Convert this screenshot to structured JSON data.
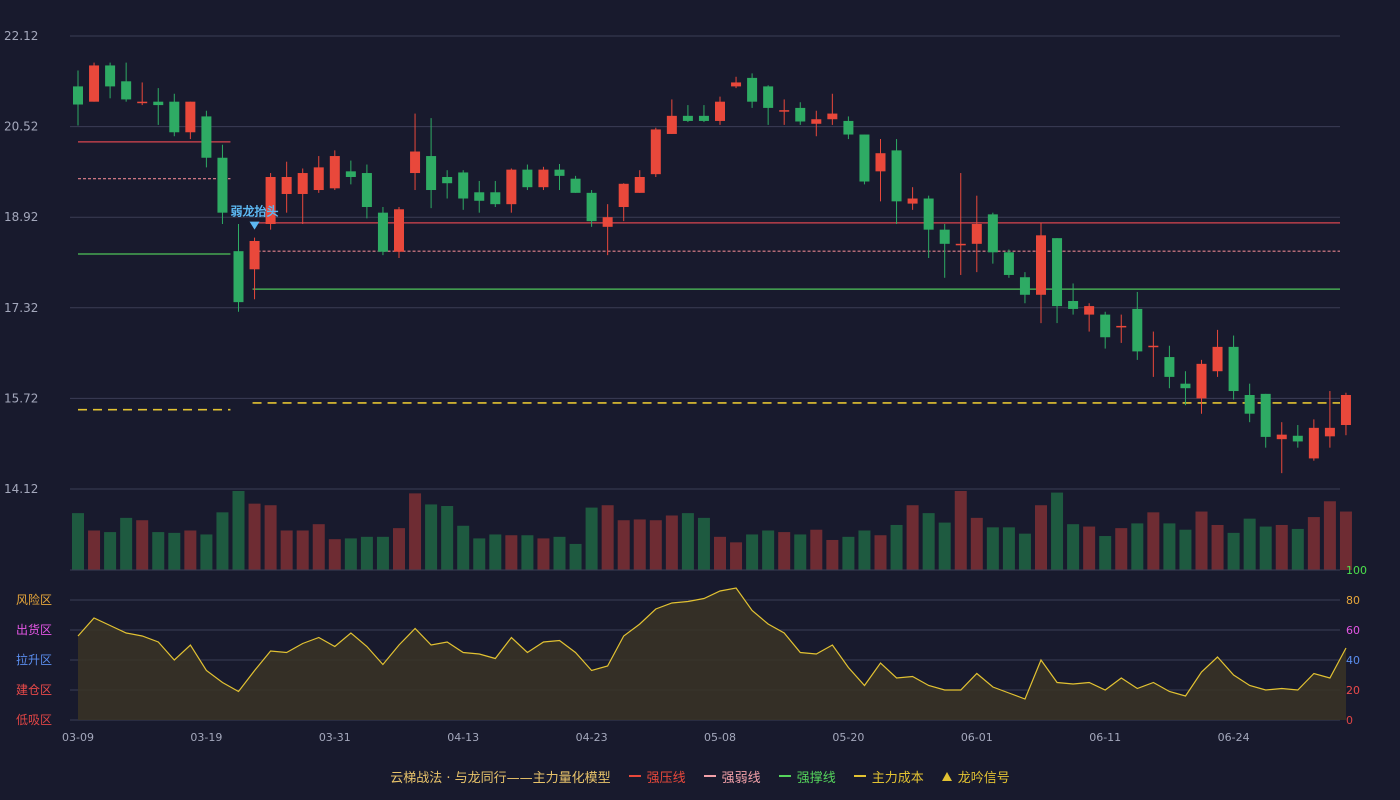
{
  "chart_data": {
    "type": "candlestick",
    "title": "",
    "colors": {
      "up": "#e9483b",
      "down": "#2eab64",
      "grid": "#3a3d55",
      "text": "#a4a8bc",
      "cost": "#e2c232",
      "indicator": "#e2c232"
    },
    "price_axis": {
      "min": 14.12,
      "max": 22.12,
      "ticks": [
        "22.12",
        "20.52",
        "18.92",
        "17.32",
        "15.72",
        "14.12"
      ]
    },
    "x_ticks": [
      {
        "i": 0,
        "label": "03-09"
      },
      {
        "i": 8,
        "label": "03-19"
      },
      {
        "i": 16,
        "label": "03-31"
      },
      {
        "i": 24,
        "label": "04-13"
      },
      {
        "i": 32,
        "label": "04-23"
      },
      {
        "i": 40,
        "label": "05-08"
      },
      {
        "i": 48,
        "label": "05-20"
      },
      {
        "i": 56,
        "label": "06-01"
      },
      {
        "i": 64,
        "label": "06-11"
      },
      {
        "i": 72,
        "label": "06-24"
      }
    ],
    "candles": [
      {
        "o": 21.23,
        "c": 20.91,
        "h": 21.51,
        "l": 20.54
      },
      {
        "o": 20.96,
        "c": 21.6,
        "h": 21.65,
        "l": 20.96
      },
      {
        "o": 21.6,
        "c": 21.23,
        "h": 21.65,
        "l": 21.02
      },
      {
        "o": 21.32,
        "c": 21.0,
        "h": 21.65,
        "l": 20.96
      },
      {
        "o": 20.96,
        "c": 20.96,
        "h": 21.3,
        "l": 20.9
      },
      {
        "o": 20.96,
        "c": 20.9,
        "h": 21.2,
        "l": 20.55
      },
      {
        "o": 20.96,
        "c": 20.42,
        "h": 21.1,
        "l": 20.35
      },
      {
        "o": 20.42,
        "c": 20.96,
        "h": 20.96,
        "l": 20.3
      },
      {
        "o": 20.7,
        "c": 19.97,
        "h": 20.8,
        "l": 19.8
      },
      {
        "o": 19.97,
        "c": 19.0,
        "h": 20.2,
        "l": 18.8
      },
      {
        "o": 18.32,
        "c": 17.42,
        "h": 18.8,
        "l": 17.25
      },
      {
        "o": 18.0,
        "c": 18.5,
        "h": 18.56,
        "l": 17.47
      },
      {
        "o": 18.8,
        "c": 19.63,
        "h": 19.7,
        "l": 18.7
      },
      {
        "o": 19.33,
        "c": 19.63,
        "h": 19.9,
        "l": 19.0
      },
      {
        "o": 19.33,
        "c": 19.7,
        "h": 19.78,
        "l": 18.8
      },
      {
        "o": 19.4,
        "c": 19.8,
        "h": 20.0,
        "l": 19.35
      },
      {
        "o": 19.43,
        "c": 20.0,
        "h": 20.1,
        "l": 19.4
      },
      {
        "o": 19.73,
        "c": 19.63,
        "h": 19.92,
        "l": 19.5
      },
      {
        "o": 19.7,
        "c": 19.1,
        "h": 19.85,
        "l": 18.9
      },
      {
        "o": 19.0,
        "c": 18.31,
        "h": 19.1,
        "l": 18.25
      },
      {
        "o": 18.31,
        "c": 19.06,
        "h": 19.1,
        "l": 18.2
      },
      {
        "o": 19.7,
        "c": 20.08,
        "h": 20.75,
        "l": 19.4
      },
      {
        "o": 20.0,
        "c": 19.4,
        "h": 20.67,
        "l": 19.08
      },
      {
        "o": 19.63,
        "c": 19.52,
        "h": 19.75,
        "l": 19.25
      },
      {
        "o": 19.71,
        "c": 19.25,
        "h": 19.75,
        "l": 19.05
      },
      {
        "o": 19.36,
        "c": 19.21,
        "h": 19.56,
        "l": 19.0
      },
      {
        "o": 19.36,
        "c": 19.15,
        "h": 19.56,
        "l": 19.1
      },
      {
        "o": 19.15,
        "c": 19.76,
        "h": 19.78,
        "l": 19.0
      },
      {
        "o": 19.76,
        "c": 19.45,
        "h": 19.85,
        "l": 19.4
      },
      {
        "o": 19.45,
        "c": 19.76,
        "h": 19.81,
        "l": 19.4
      },
      {
        "o": 19.76,
        "c": 19.65,
        "h": 19.86,
        "l": 19.4
      },
      {
        "o": 19.6,
        "c": 19.35,
        "h": 19.65,
        "l": 19.35
      },
      {
        "o": 19.35,
        "c": 18.85,
        "h": 19.4,
        "l": 18.75
      },
      {
        "o": 18.75,
        "c": 18.92,
        "h": 19.15,
        "l": 18.25
      },
      {
        "o": 19.1,
        "c": 19.51,
        "h": 19.52,
        "l": 18.85
      },
      {
        "o": 19.35,
        "c": 19.63,
        "h": 19.75,
        "l": 19.35
      },
      {
        "o": 19.68,
        "c": 20.47,
        "h": 20.5,
        "l": 19.63
      },
      {
        "o": 20.39,
        "c": 20.71,
        "h": 21.0,
        "l": 20.39
      },
      {
        "o": 20.71,
        "c": 20.62,
        "h": 20.9,
        "l": 20.6
      },
      {
        "o": 20.71,
        "c": 20.62,
        "h": 20.9,
        "l": 20.6
      },
      {
        "o": 20.62,
        "c": 20.96,
        "h": 21.05,
        "l": 20.55
      },
      {
        "o": 21.23,
        "c": 21.3,
        "h": 21.4,
        "l": 21.2
      },
      {
        "o": 21.38,
        "c": 20.96,
        "h": 21.46,
        "l": 20.85
      },
      {
        "o": 21.23,
        "c": 20.85,
        "h": 21.25,
        "l": 20.55
      },
      {
        "o": 20.81,
        "c": 20.81,
        "h": 21.0,
        "l": 20.55
      },
      {
        "o": 20.85,
        "c": 20.61,
        "h": 20.95,
        "l": 20.55
      },
      {
        "o": 20.57,
        "c": 20.65,
        "h": 20.8,
        "l": 20.35
      },
      {
        "o": 20.65,
        "c": 20.75,
        "h": 21.1,
        "l": 20.55
      },
      {
        "o": 20.62,
        "c": 20.38,
        "h": 20.7,
        "l": 20.3
      },
      {
        "o": 20.38,
        "c": 19.55,
        "h": 20.38,
        "l": 19.5
      },
      {
        "o": 19.73,
        "c": 20.05,
        "h": 20.3,
        "l": 19.2
      },
      {
        "o": 20.1,
        "c": 19.2,
        "h": 20.3,
        "l": 18.8
      },
      {
        "o": 19.16,
        "c": 19.25,
        "h": 19.45,
        "l": 19.05
      },
      {
        "o": 19.25,
        "c": 18.7,
        "h": 19.3,
        "l": 18.2
      },
      {
        "o": 18.7,
        "c": 18.45,
        "h": 18.8,
        "l": 17.85
      },
      {
        "o": 18.45,
        "c": 18.45,
        "h": 19.7,
        "l": 17.9
      },
      {
        "o": 18.45,
        "c": 18.8,
        "h": 19.3,
        "l": 17.95
      },
      {
        "o": 18.97,
        "c": 18.3,
        "h": 19.0,
        "l": 18.1
      },
      {
        "o": 18.3,
        "c": 17.9,
        "h": 18.35,
        "l": 17.85
      },
      {
        "o": 17.86,
        "c": 17.55,
        "h": 17.95,
        "l": 17.4
      },
      {
        "o": 17.55,
        "c": 18.6,
        "h": 18.82,
        "l": 17.05
      },
      {
        "o": 18.55,
        "c": 17.35,
        "h": 18.55,
        "l": 17.05
      },
      {
        "o": 17.44,
        "c": 17.3,
        "h": 17.75,
        "l": 17.2
      },
      {
        "o": 17.2,
        "c": 17.35,
        "h": 17.4,
        "l": 16.9
      },
      {
        "o": 17.2,
        "c": 16.8,
        "h": 17.25,
        "l": 16.6
      },
      {
        "o": 17.0,
        "c": 17.0,
        "h": 17.2,
        "l": 16.7
      },
      {
        "o": 17.3,
        "c": 16.55,
        "h": 17.6,
        "l": 16.4
      },
      {
        "o": 16.65,
        "c": 16.65,
        "h": 16.9,
        "l": 16.1
      },
      {
        "o": 16.45,
        "c": 16.1,
        "h": 16.65,
        "l": 15.9
      },
      {
        "o": 15.98,
        "c": 15.9,
        "h": 16.2,
        "l": 15.6
      },
      {
        "o": 15.72,
        "c": 16.33,
        "h": 16.4,
        "l": 15.45
      },
      {
        "o": 16.2,
        "c": 16.63,
        "h": 16.93,
        "l": 16.1
      },
      {
        "o": 16.63,
        "c": 15.85,
        "h": 16.83,
        "l": 15.7
      },
      {
        "o": 15.78,
        "c": 15.45,
        "h": 15.98,
        "l": 15.3
      },
      {
        "o": 15.8,
        "c": 15.04,
        "h": 15.8,
        "l": 14.85
      },
      {
        "o": 15.0,
        "c": 15.08,
        "h": 15.3,
        "l": 14.4
      },
      {
        "o": 15.06,
        "c": 14.96,
        "h": 15.25,
        "l": 14.85
      },
      {
        "o": 14.66,
        "c": 15.2,
        "h": 15.35,
        "l": 14.62
      },
      {
        "o": 15.05,
        "c": 15.2,
        "h": 15.85,
        "l": 14.85
      },
      {
        "o": 15.25,
        "c": 15.78,
        "h": 15.82,
        "l": 15.07
      }
    ],
    "volume": [
      72,
      50,
      48,
      66,
      63,
      48,
      47,
      50,
      45,
      73,
      100,
      84,
      82,
      50,
      50,
      58,
      39,
      40,
      42,
      42,
      53,
      97,
      83,
      81,
      56,
      40,
      45,
      44,
      44,
      40,
      42,
      33,
      79,
      82,
      63,
      64,
      63,
      69,
      72,
      66,
      42,
      35,
      45,
      50,
      48,
      45,
      51,
      38,
      42,
      50,
      44,
      57,
      82,
      72,
      60,
      100,
      66,
      54,
      54,
      46,
      82,
      98,
      58,
      55,
      43,
      53,
      59,
      73,
      59,
      51,
      74,
      57,
      47,
      65,
      55,
      57,
      52,
      67,
      87,
      74
    ],
    "indicator": [
      0.56,
      0.68,
      0.63,
      0.58,
      0.56,
      0.52,
      0.4,
      0.5,
      0.33,
      0.25,
      0.19,
      0.33,
      0.46,
      0.45,
      0.51,
      0.55,
      0.49,
      0.58,
      0.49,
      0.37,
      0.5,
      0.61,
      0.5,
      0.52,
      0.45,
      0.44,
      0.41,
      0.55,
      0.45,
      0.52,
      0.53,
      0.45,
      0.33,
      0.36,
      0.56,
      0.64,
      0.74,
      0.78,
      0.79,
      0.81,
      0.86,
      0.88,
      0.73,
      0.64,
      0.58,
      0.45,
      0.44,
      0.5,
      0.35,
      0.23,
      0.38,
      0.28,
      0.29,
      0.23,
      0.2,
      0.2,
      0.31,
      0.22,
      0.18,
      0.14,
      0.4,
      0.25,
      0.24,
      0.25,
      0.2,
      0.28,
      0.21,
      0.25,
      0.19,
      0.16,
      0.32,
      0.42,
      0.3,
      0.23,
      0.2,
      0.21,
      0.2,
      0.31,
      0.28,
      0.48
    ],
    "indicator_axis": {
      "ticks": [
        "100",
        "80",
        "60",
        "40",
        "20",
        "0"
      ],
      "tick_colors": [
        "#4be04b",
        "#e8a73a",
        "#e556e5",
        "#5a8dee",
        "#ea4a4a",
        "#e04545"
      ]
    },
    "zones": [
      {
        "label": "风险区",
        "color": "#e8a73a"
      },
      {
        "label": "出货区",
        "color": "#e556e5"
      },
      {
        "label": "拉升区",
        "color": "#5a8dee"
      },
      {
        "label": "建仓区",
        "color": "#ea4a4a"
      },
      {
        "label": "低吸区",
        "color": "#e04545"
      }
    ],
    "lines": [
      {
        "type": "resistance",
        "from": 0,
        "to": 9,
        "value": 20.25
      },
      {
        "type": "resistance",
        "from": 11,
        "to": 79,
        "value": 18.82
      },
      {
        "type": "weak",
        "from": 0,
        "to": 9,
        "value": 19.6
      },
      {
        "type": "weak",
        "from": 11,
        "to": 79,
        "value": 18.32
      },
      {
        "type": "support",
        "from": 0,
        "to": 9,
        "value": 18.27
      },
      {
        "type": "support",
        "from": 11,
        "to": 79,
        "value": 17.65
      },
      {
        "type": "cost",
        "from": 0,
        "to": 9,
        "value": 15.52
      },
      {
        "type": "cost",
        "from": 11,
        "to": 79,
        "value": 15.64
      }
    ],
    "signal": {
      "i": 11,
      "label": "弱龙抬头",
      "color": "#5cb8f2"
    }
  },
  "legend": {
    "title": "云梯战法 · 与龙同行——主力量化模型",
    "items": [
      {
        "label": "强压线",
        "color": "#e9483b",
        "style": "solid",
        "icon": "line-swatch-icon"
      },
      {
        "label": "强弱线",
        "color": "#f2a0a8",
        "style": "dash",
        "icon": "dash-swatch-icon"
      },
      {
        "label": "强撑线",
        "color": "#55d45c",
        "style": "solid",
        "icon": "line-swatch-icon"
      },
      {
        "label": "主力成本",
        "color": "#e2c232",
        "style": "dash",
        "icon": "dash-swatch-icon"
      },
      {
        "label": "龙吟信号",
        "color": "#e2c232",
        "style": "triangle",
        "icon": "triangle-icon"
      }
    ]
  }
}
